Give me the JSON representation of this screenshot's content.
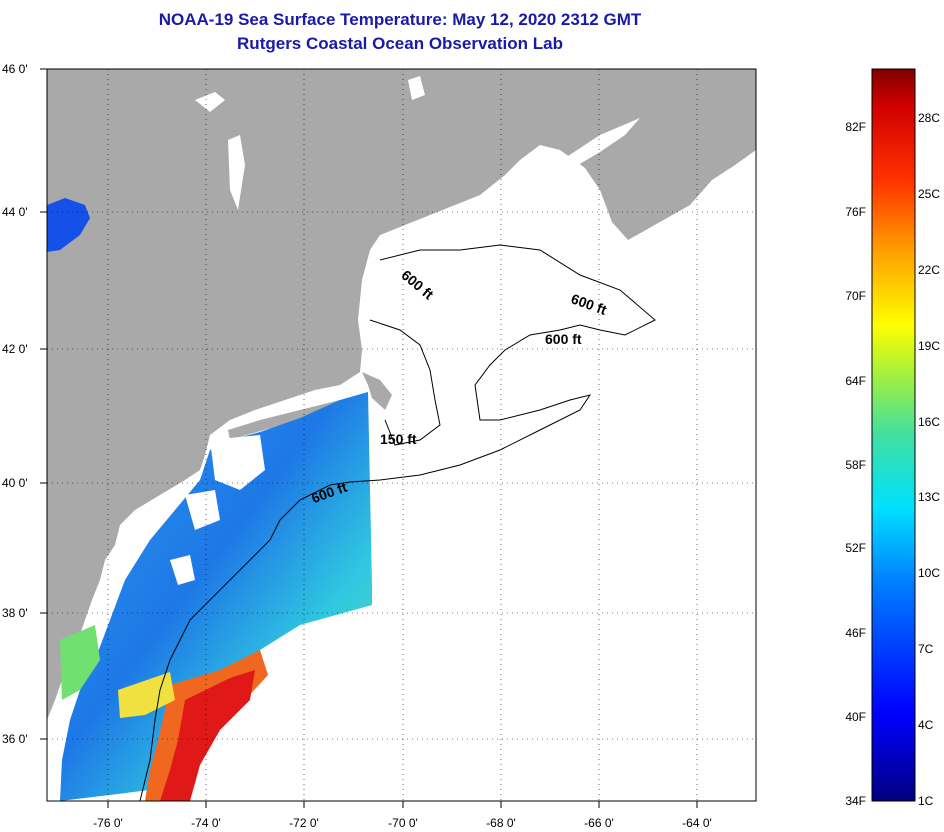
{
  "header": {
    "title_line1": "NOAA-19 Sea Surface Temperature:  May 12, 2020 2312 GMT",
    "title_line2": "Rutgers Coastal Ocean Observation Lab"
  },
  "map": {
    "lat_labels": [
      "46 0'",
      "44 0'",
      "42 0'",
      "40 0'",
      "38 0'",
      "36 0'"
    ],
    "lon_labels": [
      "-76 0'",
      "-74 0'",
      "-72 0'",
      "-70 0'",
      "-68 0'",
      "-66 0'",
      "-64 0'"
    ],
    "contour_labels": [
      "600 ft",
      "600 ft",
      "600 ft",
      "150 ft",
      "600 ft"
    ],
    "colors": {
      "land": "#a9a9a9",
      "cloud": "#ffffff",
      "water_cold": "#1e64e6",
      "water_mid": "#28b4f0",
      "water_warm": "#e61e1e"
    }
  },
  "colorbar": {
    "fahrenheit_labels": [
      "82F",
      "76F",
      "70F",
      "64F",
      "58F",
      "52F",
      "46F",
      "40F",
      "34F"
    ],
    "celsius_labels": [
      "28C",
      "25C",
      "22C",
      "19C",
      "16C",
      "13C",
      "10C",
      "7C",
      "4C",
      "1C"
    ]
  }
}
